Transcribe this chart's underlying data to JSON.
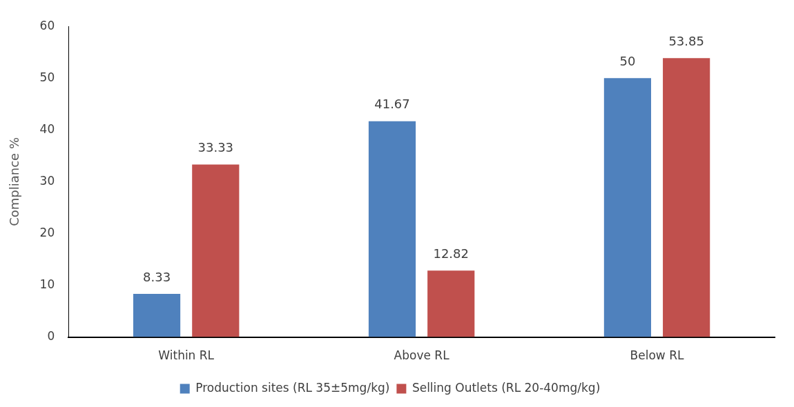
{
  "chart_data": {
    "type": "bar",
    "ylabel": "Compliance %",
    "categories": [
      "Within RL",
      "Above RL",
      "Below RL"
    ],
    "series": [
      {
        "name": "Production sites (RL 35±5mg/kg)",
        "color": "#4f81bd",
        "values": [
          8.33,
          41.67,
          50
        ]
      },
      {
        "name": "Selling Outlets (RL 20-40mg/kg)",
        "color": "#c0504d",
        "values": [
          33.33,
          12.82,
          53.85
        ]
      }
    ],
    "ylim": [
      0,
      60
    ],
    "yticks": [
      0,
      10,
      20,
      30,
      40,
      50,
      60
    ],
    "grid": false,
    "legend": "bottom",
    "data_labels": true
  }
}
